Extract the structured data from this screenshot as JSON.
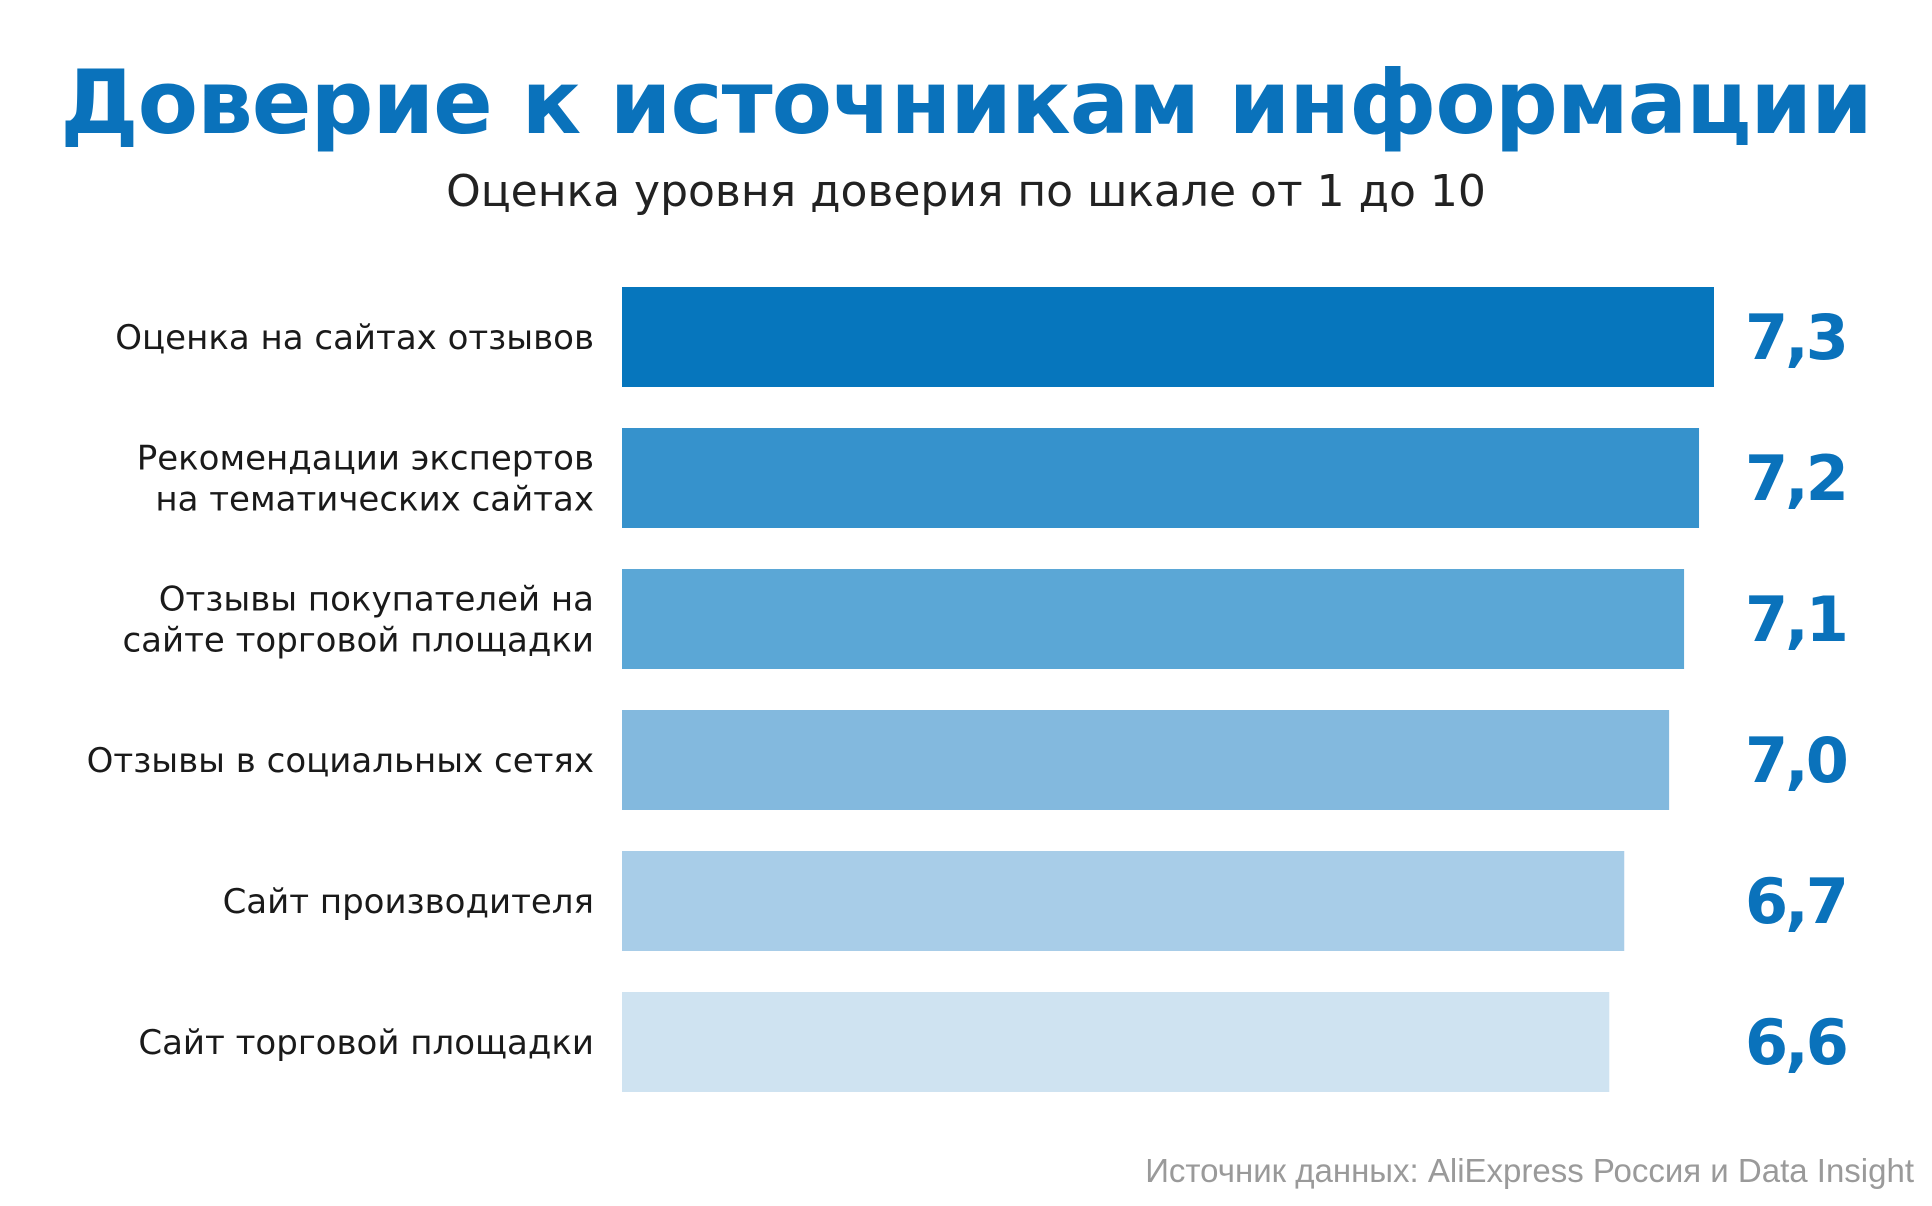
{
  "title": "Доверие к источникам информации",
  "subtitle": "Оценка уровня доверия по шкале от 1 до 10",
  "source": "Источник данных: AliExpress Россия и Data Insight",
  "colors": {
    "title": "#0a72bb",
    "value_labels": "#0a72bb",
    "category_text": "#1a1a1a",
    "bars": [
      "#0676bd",
      "#3692cc",
      "#5ba7d6",
      "#83b9de",
      "#a8cde8",
      "#cfe3f1"
    ]
  },
  "chart_data": {
    "type": "bar",
    "orientation": "horizontal",
    "title": "Доверие к источникам информации",
    "subtitle": "Оценка уровня доверия по шкале от 1 до 10",
    "categories": [
      [
        "Оценка на сайтах отзывов"
      ],
      [
        "Рекомендации экспертов",
        "на тематических сайтах"
      ],
      [
        "Отзывы покупателей на",
        "сайте торговой площадки"
      ],
      [
        "Отзывы в социальных сетях"
      ],
      [
        "Сайт производителя"
      ],
      [
        "Сайт торговой площадки"
      ]
    ],
    "values": [
      7.3,
      7.2,
      7.1,
      7.0,
      6.7,
      6.6
    ],
    "value_labels": [
      "7,3",
      "7,2",
      "7,1",
      "7,0",
      "6,7",
      "6,6"
    ],
    "xlim": [
      0,
      10
    ],
    "grid": false,
    "legend": "none"
  }
}
